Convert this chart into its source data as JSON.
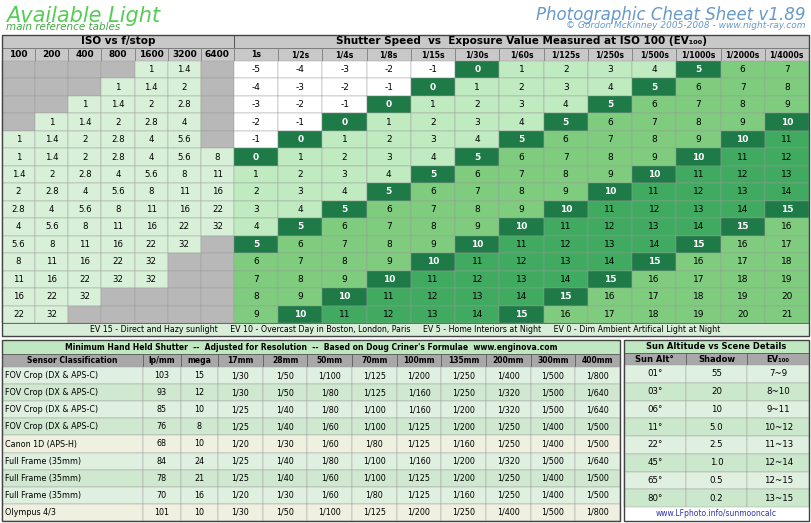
{
  "title_left": "Available Light",
  "subtitle_left": "main reference tables",
  "title_right": "Photographic Cheat Sheet v1.89",
  "subtitle_right": "© Gordon McKinney 2005-2008 - www.night-ray.com",
  "iso_cols": [
    "100",
    "200",
    "400",
    "800",
    "1600",
    "3200",
    "6400"
  ],
  "shutter_cols": [
    "1s",
    "1/2s",
    "1/4s",
    "1/8s",
    "1/15s",
    "1/30s",
    "1/60s",
    "1/125s",
    "1/250s",
    "1/500s",
    "1/1000s",
    "1/2000s",
    "1/4000s"
  ],
  "main_rows_iso": [
    [
      null,
      null,
      null,
      null,
      1,
      1.4
    ],
    [
      null,
      null,
      null,
      1,
      1.4,
      2
    ],
    [
      null,
      null,
      1,
      1.4,
      2,
      2.8
    ],
    [
      null,
      1,
      1.4,
      2,
      2.8,
      4
    ],
    [
      1,
      1.4,
      2,
      2.8,
      4,
      5.6
    ],
    [
      1,
      1.4,
      2,
      2.8,
      4,
      5.6,
      8
    ],
    [
      1.4,
      2,
      2.8,
      4,
      5.6,
      8,
      11
    ],
    [
      2,
      2.8,
      4,
      5.6,
      8,
      11,
      16
    ],
    [
      2.8,
      4,
      5.6,
      8,
      11,
      16,
      22
    ],
    [
      4,
      5.6,
      8,
      11,
      16,
      22,
      32
    ],
    [
      5.6,
      8,
      11,
      16,
      22,
      32,
      null
    ],
    [
      8,
      11,
      16,
      22,
      32,
      null,
      null
    ],
    [
      11,
      16,
      22,
      32,
      32,
      null,
      null
    ],
    [
      16,
      22,
      32,
      null,
      null,
      null,
      null
    ],
    [
      22,
      32,
      null,
      null,
      null,
      null,
      null
    ]
  ],
  "main_rows_ev": [
    [
      -5,
      -4,
      -3,
      -2,
      -1,
      0,
      1,
      2,
      3,
      4,
      5,
      6,
      7
    ],
    [
      -4,
      -3,
      -2,
      -1,
      0,
      1,
      2,
      3,
      4,
      5,
      6,
      7,
      8
    ],
    [
      -3,
      -2,
      -1,
      0,
      1,
      2,
      3,
      4,
      5,
      6,
      7,
      8,
      9
    ],
    [
      -2,
      -1,
      0,
      1,
      2,
      3,
      4,
      5,
      6,
      7,
      8,
      9,
      10
    ],
    [
      -1,
      0,
      1,
      2,
      3,
      4,
      5,
      6,
      7,
      8,
      9,
      10,
      11
    ],
    [
      0,
      1,
      2,
      3,
      4,
      5,
      6,
      7,
      8,
      9,
      10,
      11,
      12
    ],
    [
      1,
      2,
      3,
      4,
      5,
      6,
      7,
      8,
      9,
      10,
      11,
      12,
      13
    ],
    [
      2,
      3,
      4,
      5,
      6,
      7,
      8,
      9,
      10,
      11,
      12,
      13,
      14
    ],
    [
      3,
      4,
      5,
      6,
      7,
      8,
      9,
      10,
      11,
      12,
      13,
      14,
      15
    ],
    [
      4,
      5,
      6,
      7,
      8,
      9,
      10,
      11,
      12,
      13,
      14,
      15,
      16
    ],
    [
      5,
      6,
      7,
      8,
      9,
      10,
      11,
      12,
      13,
      14,
      15,
      16,
      17
    ],
    [
      6,
      7,
      8,
      9,
      10,
      11,
      12,
      13,
      14,
      15,
      16,
      17,
      18
    ],
    [
      7,
      8,
      9,
      10,
      11,
      12,
      13,
      14,
      15,
      16,
      17,
      18,
      19
    ],
    [
      8,
      9,
      10,
      11,
      12,
      13,
      14,
      15,
      16,
      17,
      18,
      19,
      20
    ],
    [
      9,
      10,
      11,
      12,
      13,
      14,
      15,
      16,
      17,
      18,
      19,
      20,
      21
    ]
  ],
  "ev_footer": "EV 15 - Direct and Hazy sunlight     EV 10 - Overcast Day in Boston, London, Paris     EV 5 - Home Interiors at Night     EV 0 - Dim Ambient Artifical Light at Night",
  "shutter_table_title": "Minimum Hand Held Shutter  --  Adjusted for Resolution  --  Based on Doug Criner's Formulae  www.enginova.com",
  "shutter_table_cols": [
    "Sensor Classification",
    "lp/mm",
    "mega",
    "17mm",
    "28mm",
    "50mm",
    "70mm",
    "100mm",
    "135mm",
    "200mm",
    "300mm",
    "400mm"
  ],
  "shutter_col_widths": [
    120,
    32,
    32,
    38,
    38,
    38,
    38,
    38,
    38,
    38,
    38,
    38
  ],
  "shutter_table_rows": [
    [
      "FOV Crop (DX & APS-C)",
      "103",
      "15",
      "1/30",
      "1/50",
      "1/100",
      "1/125",
      "1/200",
      "1/250",
      "1/400",
      "1/500",
      "1/800"
    ],
    [
      "FOV Crop (DX & APS-C)",
      "93",
      "12",
      "1/30",
      "1/50",
      "1/80",
      "1/125",
      "1/160",
      "1/250",
      "1/320",
      "1/500",
      "1/640"
    ],
    [
      "FOV Crop (DX & APS-C)",
      "85",
      "10",
      "1/25",
      "1/40",
      "1/80",
      "1/100",
      "1/160",
      "1/200",
      "1/320",
      "1/500",
      "1/640"
    ],
    [
      "FOV Crop (DX & APS-C)",
      "76",
      "8",
      "1/25",
      "1/40",
      "1/60",
      "1/100",
      "1/125",
      "1/200",
      "1/250",
      "1/400",
      "1/500"
    ],
    [
      "Canon 1D (APS-H)",
      "68",
      "10",
      "1/20",
      "1/30",
      "1/60",
      "1/80",
      "1/125",
      "1/160",
      "1/250",
      "1/400",
      "1/500"
    ],
    [
      "Full Frame (35mm)",
      "84",
      "24",
      "1/25",
      "1/40",
      "1/80",
      "1/100",
      "1/160",
      "1/200",
      "1/320",
      "1/500",
      "1/640"
    ],
    [
      "Full Frame (35mm)",
      "78",
      "21",
      "1/25",
      "1/40",
      "1/60",
      "1/100",
      "1/125",
      "1/200",
      "1/250",
      "1/400",
      "1/500"
    ],
    [
      "Full Frame (35mm)",
      "70",
      "16",
      "1/20",
      "1/30",
      "1/60",
      "1/80",
      "1/125",
      "1/160",
      "1/250",
      "1/400",
      "1/500"
    ],
    [
      "Olympus 4/3",
      "101",
      "10",
      "1/30",
      "1/50",
      "1/100",
      "1/125",
      "1/200",
      "1/250",
      "1/400",
      "1/500",
      "1/800"
    ]
  ],
  "shutter_row_colors": [
    "#e0f0e0",
    "#d0e8d0",
    "#e0f0e0",
    "#d0e8d0",
    "#f0f0e0",
    "#e0f0e0",
    "#d0e8d0",
    "#e0f0e0",
    "#f0f0e0"
  ],
  "sun_table_title": "Sun Altitude vs Scene Details",
  "sun_table_cols": [
    "Sun Alt°",
    "Shadow",
    "EV₁₀₀"
  ],
  "sun_table_rows": [
    [
      "01°",
      "55",
      "7~9"
    ],
    [
      "03°",
      "20",
      "8~10"
    ],
    [
      "06°",
      "10",
      "9~11"
    ],
    [
      "11°",
      "5.0",
      "10~12"
    ],
    [
      "22°",
      "2.5",
      "11~13"
    ],
    [
      "45°",
      "1.0",
      "12~14"
    ],
    [
      "65°",
      "0.5",
      "12~15"
    ],
    [
      "80°",
      "0.2",
      "13~15"
    ]
  ],
  "sun_footer": "www.LFphoto.info/sunmooncalc",
  "title_left_color": "#55cc55",
  "title_right_color": "#6699cc",
  "subtitle_left_color": "#44aa44",
  "header_bg": "#c8c8c8",
  "iso_gray_bg": "#b8b8b8",
  "iso_green_bg": "#d8f0d8",
  "ev_white": "#ffffff",
  "ev_pale": "#c0eac0",
  "ev_light": "#7fcc7f",
  "ev_mid": "#40aa60",
  "ev_dark": "#1e7a46",
  "footer_bg": "#d8eed8",
  "lower_title_bg": "#c0e8c0",
  "lower_hdr_bg": "#a8a8a8",
  "sun_link_color": "#3333aa"
}
